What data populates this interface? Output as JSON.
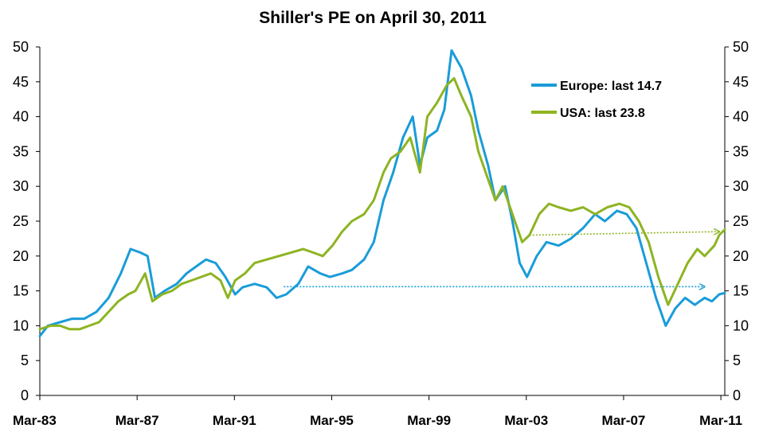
{
  "chart_data": {
    "type": "line",
    "title": "Shiller's PE on April 30, 2011",
    "xlabel": "",
    "ylabel": "",
    "xlim": [
      1983.17,
      2011.33
    ],
    "ylim": [
      0,
      50
    ],
    "grid": false,
    "legend_placement": "top-right",
    "x_tick_labels": [
      "Mar-83",
      "Mar-87",
      "Mar-91",
      "Mar-95",
      "Mar-99",
      "Mar-03",
      "Mar-07",
      "Mar-11"
    ],
    "x_tick_values": [
      1983.17,
      1987.17,
      1991.17,
      1995.17,
      1999.17,
      2003.17,
      2007.17,
      2011.17
    ],
    "y_ticks": [
      0,
      5,
      10,
      15,
      20,
      25,
      30,
      35,
      40,
      45,
      50
    ],
    "series": [
      {
        "name": "Europe: last 14.7",
        "color": "#1a9cd8",
        "points": [
          [
            1983.17,
            8.5
          ],
          [
            1983.5,
            10.0
          ],
          [
            1984.0,
            10.5
          ],
          [
            1984.5,
            11.0
          ],
          [
            1985.0,
            11.0
          ],
          [
            1985.5,
            12.0
          ],
          [
            1986.0,
            14.0
          ],
          [
            1986.5,
            17.5
          ],
          [
            1986.9,
            21.0
          ],
          [
            1987.3,
            20.5
          ],
          [
            1987.6,
            20.0
          ],
          [
            1987.9,
            14.0
          ],
          [
            1988.3,
            15.0
          ],
          [
            1988.8,
            16.0
          ],
          [
            1989.2,
            17.5
          ],
          [
            1989.6,
            18.5
          ],
          [
            1990.0,
            19.5
          ],
          [
            1990.4,
            19.0
          ],
          [
            1990.8,
            17.0
          ],
          [
            1991.2,
            14.5
          ],
          [
            1991.5,
            15.5
          ],
          [
            1992.0,
            16.0
          ],
          [
            1992.5,
            15.5
          ],
          [
            1992.9,
            14.0
          ],
          [
            1993.3,
            14.5
          ],
          [
            1993.8,
            16.0
          ],
          [
            1994.2,
            18.5
          ],
          [
            1994.7,
            17.5
          ],
          [
            1995.1,
            17.0
          ],
          [
            1995.6,
            17.5
          ],
          [
            1996.0,
            18.0
          ],
          [
            1996.5,
            19.5
          ],
          [
            1996.9,
            22.0
          ],
          [
            1997.3,
            28.0
          ],
          [
            1997.7,
            32.0
          ],
          [
            1998.1,
            37.0
          ],
          [
            1998.5,
            40.0
          ],
          [
            1998.8,
            33.0
          ],
          [
            1999.1,
            37.0
          ],
          [
            1999.5,
            38.0
          ],
          [
            1999.8,
            41.0
          ],
          [
            2000.1,
            49.5
          ],
          [
            2000.5,
            47.0
          ],
          [
            2000.9,
            43.0
          ],
          [
            2001.2,
            38.0
          ],
          [
            2001.6,
            33.0
          ],
          [
            2001.9,
            28.0
          ],
          [
            2002.3,
            30.0
          ],
          [
            2002.6,
            25.0
          ],
          [
            2002.9,
            19.0
          ],
          [
            2003.2,
            17.0
          ],
          [
            2003.6,
            20.0
          ],
          [
            2004.0,
            22.0
          ],
          [
            2004.5,
            21.5
          ],
          [
            2005.0,
            22.5
          ],
          [
            2005.5,
            24.0
          ],
          [
            2006.0,
            26.0
          ],
          [
            2006.4,
            25.0
          ],
          [
            2006.9,
            26.5
          ],
          [
            2007.3,
            26.0
          ],
          [
            2007.7,
            24.0
          ],
          [
            2008.1,
            19.0
          ],
          [
            2008.5,
            14.0
          ],
          [
            2008.9,
            10.0
          ],
          [
            2009.3,
            12.5
          ],
          [
            2009.7,
            14.0
          ],
          [
            2010.1,
            13.0
          ],
          [
            2010.5,
            14.0
          ],
          [
            2010.8,
            13.5
          ],
          [
            2011.1,
            14.5
          ],
          [
            2011.33,
            14.7
          ]
        ]
      },
      {
        "name": "USA: last 23.8",
        "color": "#8db422",
        "points": [
          [
            1983.17,
            9.5
          ],
          [
            1983.6,
            10.0
          ],
          [
            1984.0,
            10.0
          ],
          [
            1984.4,
            9.5
          ],
          [
            1984.8,
            9.5
          ],
          [
            1985.2,
            10.0
          ],
          [
            1985.6,
            10.5
          ],
          [
            1986.0,
            12.0
          ],
          [
            1986.4,
            13.5
          ],
          [
            1986.8,
            14.5
          ],
          [
            1987.1,
            15.0
          ],
          [
            1987.5,
            17.5
          ],
          [
            1987.8,
            13.5
          ],
          [
            1988.2,
            14.5
          ],
          [
            1988.6,
            15.0
          ],
          [
            1989.0,
            16.0
          ],
          [
            1989.4,
            16.5
          ],
          [
            1989.8,
            17.0
          ],
          [
            1990.2,
            17.5
          ],
          [
            1990.6,
            16.5
          ],
          [
            1990.9,
            14.0
          ],
          [
            1991.2,
            16.5
          ],
          [
            1991.6,
            17.5
          ],
          [
            1992.0,
            19.0
          ],
          [
            1992.5,
            19.5
          ],
          [
            1993.0,
            20.0
          ],
          [
            1993.5,
            20.5
          ],
          [
            1994.0,
            21.0
          ],
          [
            1994.4,
            20.5
          ],
          [
            1994.8,
            20.0
          ],
          [
            1995.2,
            21.5
          ],
          [
            1995.6,
            23.5
          ],
          [
            1996.0,
            25.0
          ],
          [
            1996.5,
            26.0
          ],
          [
            1996.9,
            28.0
          ],
          [
            1997.3,
            32.0
          ],
          [
            1997.6,
            34.0
          ],
          [
            1998.0,
            35.0
          ],
          [
            1998.4,
            37.0
          ],
          [
            1998.8,
            32.0
          ],
          [
            1999.1,
            40.0
          ],
          [
            1999.5,
            42.0
          ],
          [
            1999.9,
            44.5
          ],
          [
            2000.2,
            45.5
          ],
          [
            2000.5,
            43.0
          ],
          [
            2000.9,
            40.0
          ],
          [
            2001.2,
            35.0
          ],
          [
            2001.6,
            31.0
          ],
          [
            2001.9,
            28.0
          ],
          [
            2002.2,
            30.0
          ],
          [
            2002.6,
            26.0
          ],
          [
            2003.0,
            22.0
          ],
          [
            2003.3,
            23.0
          ],
          [
            2003.7,
            26.0
          ],
          [
            2004.1,
            27.5
          ],
          [
            2004.5,
            27.0
          ],
          [
            2005.0,
            26.5
          ],
          [
            2005.5,
            27.0
          ],
          [
            2006.0,
            26.0
          ],
          [
            2006.5,
            27.0
          ],
          [
            2007.0,
            27.5
          ],
          [
            2007.4,
            27.0
          ],
          [
            2007.8,
            25.0
          ],
          [
            2008.2,
            22.0
          ],
          [
            2008.6,
            17.0
          ],
          [
            2009.0,
            13.0
          ],
          [
            2009.4,
            16.0
          ],
          [
            2009.8,
            19.0
          ],
          [
            2010.2,
            21.0
          ],
          [
            2010.5,
            20.0
          ],
          [
            2010.9,
            21.5
          ],
          [
            2011.1,
            23.0
          ],
          [
            2011.33,
            23.8
          ]
        ]
      }
    ],
    "reference_arrows": [
      {
        "series": "Europe: last 14.7",
        "color": "#1a9cd8",
        "x_start": 1993.2,
        "x_end": 2010.5,
        "y": 15.6
      },
      {
        "series": "USA: last 23.8",
        "color": "#8db422",
        "x_start": 2003.3,
        "x_end": 2011.1,
        "y_start": 23.0,
        "y_end": 23.5
      }
    ]
  }
}
